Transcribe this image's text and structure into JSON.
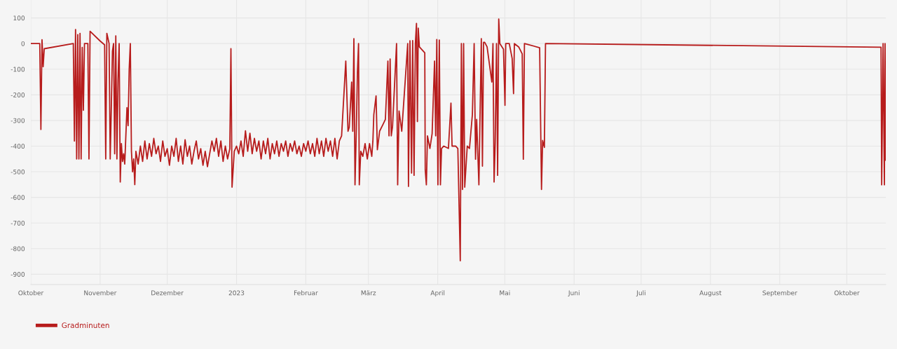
{
  "chart_data": {
    "type": "line",
    "grid": true,
    "legend": "bottom left",
    "marker": "none",
    "line_style": "solid",
    "xlim": [
      "2022-10-01",
      "2023-10-18T10:00"
    ],
    "ylim": [
      -940,
      170
    ],
    "yticks": [
      100,
      0,
      -100,
      -200,
      -300,
      -400,
      -500,
      -600,
      -700,
      -800,
      -900
    ],
    "xticks": [
      {
        "value": "2022-10-01",
        "label": "Oktober"
      },
      {
        "value": "2022-11-01",
        "label": "November"
      },
      {
        "value": "2022-12-01",
        "label": "Dezember"
      },
      {
        "value": "2023-01-01",
        "label": "2023"
      },
      {
        "value": "2023-02-01",
        "label": "Februar"
      },
      {
        "value": "2023-03-01",
        "label": "März"
      },
      {
        "value": "2023-04-01",
        "label": "April"
      },
      {
        "value": "2023-05-01",
        "label": "Mai"
      },
      {
        "value": "2023-06-01",
        "label": "Juni"
      },
      {
        "value": "2023-07-01",
        "label": "Juli"
      },
      {
        "value": "2023-08-01",
        "label": "August"
      },
      {
        "value": "2023-09-01",
        "label": "September"
      },
      {
        "value": "2023-10-01",
        "label": "Oktober"
      }
    ],
    "series": [
      {
        "name": "Gradminuten",
        "color": "#b71c1c",
        "x": [
          "2022-10-01",
          "2022-10-05",
          "2022-10-05T12:00",
          "2022-10-06",
          "2022-10-06T12:00",
          "2022-10-07",
          "2022-10-20",
          "2022-10-20T12:00",
          "2022-10-21",
          "2022-10-21T12:00",
          "2022-10-22",
          "2022-10-22T12:00",
          "2022-10-23",
          "2022-10-23T12:00",
          "2022-10-24",
          "2022-10-24T12:00",
          "2022-10-25",
          "2022-10-26T12:00",
          "2022-10-27",
          "2022-10-27T12:00",
          "2022-11-01",
          "2022-11-03",
          "2022-11-03T12:00",
          "2022-11-04",
          "2022-11-05",
          "2022-11-05T12:00",
          "2022-11-06",
          "2022-11-06T12:00",
          "2022-11-07",
          "2022-11-07T12:00",
          "2022-11-08",
          "2022-11-08T12:00",
          "2022-11-09",
          "2022-11-09T12:00",
          "2022-11-10",
          "2022-11-10T12:00",
          "2022-11-11",
          "2022-11-11T12:00",
          "2022-11-12",
          "2022-11-13",
          "2022-11-13T12:00",
          "2022-11-14",
          "2022-11-14T12:00",
          "2022-11-15",
          "2022-11-15T12:00",
          "2022-11-16",
          "2022-11-16T12:00",
          "2022-11-17",
          "2022-11-18",
          "2022-11-19",
          "2022-11-20",
          "2022-11-21",
          "2022-11-22",
          "2022-11-23",
          "2022-11-24",
          "2022-11-25",
          "2022-11-26",
          "2022-11-27",
          "2022-11-28",
          "2022-11-29",
          "2022-11-30",
          "2022-12-01",
          "2022-12-02",
          "2022-12-03",
          "2022-12-04",
          "2022-12-05",
          "2022-12-06",
          "2022-12-07",
          "2022-12-08",
          "2022-12-09",
          "2022-12-10",
          "2022-12-11",
          "2022-12-12",
          "2022-12-13",
          "2022-12-14",
          "2022-12-15",
          "2022-12-16",
          "2022-12-17",
          "2022-12-18",
          "2022-12-19",
          "2022-12-20",
          "2022-12-21",
          "2022-12-22",
          "2022-12-23",
          "2022-12-24",
          "2022-12-25",
          "2022-12-26",
          "2022-12-27",
          "2022-12-28",
          "2022-12-29",
          "2022-12-29T12:00",
          "2022-12-30",
          "2022-12-31",
          "2023-01-01",
          "2023-01-02",
          "2023-01-03",
          "2023-01-04",
          "2023-01-05",
          "2023-01-06",
          "2023-01-07",
          "2023-01-08",
          "2023-01-09",
          "2023-01-10",
          "2023-01-11",
          "2023-01-12",
          "2023-01-13",
          "2023-01-14",
          "2023-01-15",
          "2023-01-16",
          "2023-01-17",
          "2023-01-18",
          "2023-01-19",
          "2023-01-20",
          "2023-01-21",
          "2023-01-22",
          "2023-01-23",
          "2023-01-24",
          "2023-01-25",
          "2023-01-26",
          "2023-01-27",
          "2023-01-28",
          "2023-01-29",
          "2023-01-30",
          "2023-01-31",
          "2023-02-01",
          "2023-02-02",
          "2023-02-03",
          "2023-02-04",
          "2023-02-05",
          "2023-02-06",
          "2023-02-07",
          "2023-02-08",
          "2023-02-09",
          "2023-02-10",
          "2023-02-11",
          "2023-02-12",
          "2023-02-13",
          "2023-02-14",
          "2023-02-15",
          "2023-02-16",
          "2023-02-17",
          "2023-02-18T21:00",
          "2023-02-19T21:00",
          "2023-02-20T10:00",
          "2023-02-21T12:00",
          "2023-02-22T00:00",
          "2023-02-22T12:00",
          "2023-02-23T00:00",
          "2023-02-23T14:00",
          "2023-02-24T02:00",
          "2023-02-24T14:00",
          "2023-02-24T22:00",
          "2023-02-25T14:00",
          "2023-02-26T12:00",
          "2023-02-27T12:00",
          "2023-02-28T12:00",
          "2023-03-01T12:00",
          "2023-03-02T12:00",
          "2023-03-03T00:00",
          "2023-03-03T10:00",
          "2023-03-04T10:00",
          "2023-03-05T00:00",
          "2023-03-06T00:00",
          "2023-03-07T14:00",
          "2023-03-08T14:00",
          "2023-03-09T17:00",
          "2023-03-10T05:00",
          "2023-03-10T17:00",
          "2023-03-11T05:00",
          "2023-03-11T19:00",
          "2023-03-13T14:00",
          "2023-03-14T02:00",
          "2023-03-14T17:00",
          "2023-03-15T22:00",
          "2023-03-17T12:00",
          "2023-03-18T14:00",
          "2023-03-18T22:00",
          "2023-03-19T14:00",
          "2023-03-20T07:00",
          "2023-03-20T19:00",
          "2023-03-21T10:00",
          "2023-03-22T00:00",
          "2023-03-22T12:00",
          "2023-03-22T22:00",
          "2023-03-23T07:00",
          "2023-03-23T19:00",
          "2023-03-25T07:00",
          "2023-03-26T05:00",
          "2023-03-26T10:00",
          "2023-03-26T22:00",
          "2023-03-27T10:00",
          "2023-03-28T12:00",
          "2023-03-29T12:00",
          "2023-03-30T14:00",
          "2023-03-31T02:00",
          "2023-03-31T14:00",
          "2023-04-01T02:00",
          "2023-04-01T17:00",
          "2023-04-02T05:00",
          "2023-04-02T17:00",
          "2023-04-03T17:00",
          "2023-04-05T19:00",
          "2023-04-06T22:00",
          "2023-04-07T10:00",
          "2023-04-09T00:00",
          "2023-04-10T00:00",
          "2023-04-11T02:00",
          "2023-04-11T14:00",
          "2023-04-12T02:00",
          "2023-04-12T14:00",
          "2023-04-13T02:00",
          "2023-04-14T05:00",
          "2023-04-15T05:00",
          "2023-04-16T12:00",
          "2023-04-17T07:00",
          "2023-04-17T22:00",
          "2023-04-18T10:00",
          "2023-04-19T10:00",
          "2023-04-20T12:00",
          "2023-04-21T00:00",
          "2023-04-21T12:00",
          "2023-04-22T00:00",
          "2023-04-23T02:00",
          "2023-04-25T05:00",
          "2023-04-25T17:00",
          "2023-04-26T05:00",
          "2023-04-26T17:00",
          "2023-04-27T07:00",
          "2023-04-27T19:00",
          "2023-04-28T07:00",
          "2023-04-28T19:00",
          "2023-04-30T10:00",
          "2023-05-01T02:00",
          "2023-05-01T10:00",
          "2023-05-03T00:00",
          "2023-05-04T07:00",
          "2023-05-04T22:00",
          "2023-05-05T07:00",
          "2023-05-07T05:00",
          "2023-05-08T19:00",
          "2023-05-09T07:00",
          "2023-05-09T19:00",
          "2023-05-16T14:00",
          "2023-05-17T10:00",
          "2023-05-17T22:00",
          "2023-05-18T17:00",
          "2023-05-19T05:00",
          "2023-10-16T07:00",
          "2023-10-16T14:00",
          "2023-10-17T05:00",
          "2023-10-17T19:00",
          "2023-10-18T02:00",
          "2023-10-18T09:00"
        ],
        "values": [
          0,
          0,
          -335,
          15,
          -90,
          -20,
          0,
          -380,
          55,
          -450,
          35,
          -450,
          40,
          -450,
          -15,
          -260,
          0,
          0,
          -450,
          48,
          10,
          -5,
          -450,
          40,
          0,
          -450,
          -250,
          -30,
          0,
          -430,
          30,
          -450,
          -140,
          0,
          -540,
          -390,
          -460,
          -430,
          -470,
          -250,
          -320,
          -100,
          0,
          -420,
          -500,
          -450,
          -550,
          -420,
          -470,
          -400,
          -460,
          -380,
          -450,
          -390,
          -440,
          -370,
          -430,
          -400,
          -460,
          -380,
          -440,
          -410,
          -475,
          -400,
          -440,
          -370,
          -460,
          -400,
          -470,
          -375,
          -440,
          -400,
          -470,
          -420,
          -380,
          -450,
          -410,
          -475,
          -420,
          -480,
          -430,
          -380,
          -420,
          -370,
          -440,
          -380,
          -460,
          -400,
          -450,
          -410,
          -20,
          -560,
          -420,
          -400,
          -430,
          -380,
          -440,
          -340,
          -420,
          -350,
          -430,
          -370,
          -420,
          -380,
          -450,
          -380,
          -430,
          -370,
          -450,
          -390,
          -430,
          -380,
          -440,
          -390,
          -420,
          -380,
          -440,
          -390,
          -420,
          -380,
          -430,
          -400,
          -440,
          -390,
          -420,
          -380,
          -430,
          -390,
          -440,
          -370,
          -430,
          -380,
          -440,
          -370,
          -420,
          -380,
          -440,
          -370,
          -450,
          -380,
          -360,
          -68,
          -342,
          -327,
          -150,
          -342,
          19,
          -551,
          -342,
          -113,
          0,
          -551,
          -420,
          -440,
          -390,
          -450,
          -390,
          -440,
          -380,
          -277,
          -204,
          -414,
          -342,
          -314,
          -296,
          -68,
          -360,
          -60,
          -360,
          -323,
          0,
          -551,
          -263,
          -342,
          -140,
          0,
          -557,
          11,
          -505,
          12,
          -514,
          0,
          79,
          -304,
          60,
          -13,
          -27,
          -36,
          -492,
          -551,
          -360,
          -409,
          -351,
          -68,
          -360,
          16,
          -551,
          14,
          -551,
          -409,
          -400,
          -409,
          -232,
          -400,
          -400,
          -409,
          -847,
          0,
          -569,
          0,
          -560,
          -400,
          -409,
          -277,
          0,
          -451,
          -296,
          -551,
          19,
          -478,
          5,
          5,
          -13,
          -150,
          0,
          -540,
          -387,
          0,
          -514,
          96,
          0,
          -22,
          -241,
          0,
          0,
          -58,
          -195,
          0,
          -13,
          -40,
          -451,
          0,
          -16,
          -569,
          -378,
          -405,
          0,
          -14,
          -551,
          0,
          -551,
          0,
          -455
        ]
      }
    ]
  }
}
